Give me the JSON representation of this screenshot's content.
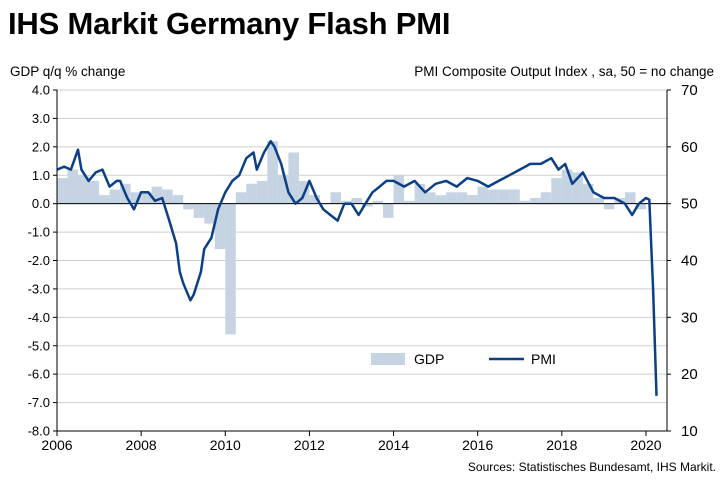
{
  "title": "IHS Markit Germany Flash PMI",
  "chart_data": {
    "type": "bar+line",
    "left_axis_label": "GDP q/q % change",
    "right_axis_label": "PMI Composite Output Index , sa, 50 = no change",
    "left_ylim": [
      -8.0,
      4.0
    ],
    "left_ticks": [
      "4.0",
      "3.0",
      "2.0",
      "1.0",
      "0.0",
      "-1.0",
      "-2.0",
      "-3.0",
      "-4.0",
      "-5.0",
      "-6.0",
      "-7.0",
      "-8.0"
    ],
    "right_ylim": [
      10,
      70
    ],
    "right_ticks": [
      "70",
      "60",
      "50",
      "40",
      "30",
      "20",
      "10"
    ],
    "x_range": [
      2006,
      2020.5
    ],
    "x_ticks": [
      "2006",
      "2008",
      "2010",
      "2012",
      "2014",
      "2016",
      "2018",
      "2020"
    ],
    "legend": {
      "gdp": "GDP",
      "pmi": "PMI",
      "position": "bottom-right"
    },
    "source": "Sources: Statistisches Bundesamt, IHS Markit.",
    "colors": {
      "gdp": "#c5d3e2",
      "pmi": "#0b3f86"
    },
    "gdp": {
      "name": "GDP",
      "x": [
        2006.0,
        2006.25,
        2006.5,
        2006.75,
        2007.0,
        2007.25,
        2007.5,
        2007.75,
        2008.0,
        2008.25,
        2008.5,
        2008.75,
        2009.0,
        2009.25,
        2009.5,
        2009.75,
        2010.0,
        2010.25,
        2010.5,
        2010.75,
        2011.0,
        2011.25,
        2011.5,
        2011.75,
        2012.0,
        2012.25,
        2012.5,
        2012.75,
        2013.0,
        2013.25,
        2013.5,
        2013.75,
        2014.0,
        2014.25,
        2014.5,
        2014.75,
        2015.0,
        2015.25,
        2015.5,
        2015.75,
        2016.0,
        2016.25,
        2016.5,
        2016.75,
        2017.0,
        2017.25,
        2017.5,
        2017.75,
        2018.0,
        2018.25,
        2018.5,
        2018.75,
        2019.0,
        2019.25,
        2019.5,
        2019.75
      ],
      "values": [
        0.9,
        1.2,
        1.0,
        0.8,
        0.3,
        0.5,
        0.7,
        0.4,
        0.4,
        0.6,
        0.5,
        0.3,
        -0.2,
        -0.5,
        -0.7,
        -1.6,
        -4.6,
        0.4,
        0.7,
        0.8,
        2.2,
        1.0,
        1.8,
        0.8,
        0.3,
        0.0,
        0.4,
        0.1,
        0.2,
        -0.1,
        0.1,
        -0.5,
        1.0,
        0.1,
        0.7,
        0.4,
        0.3,
        0.4,
        0.4,
        0.3,
        0.6,
        0.5,
        0.5,
        0.5,
        0.1,
        0.2,
        0.4,
        0.9,
        1.2,
        1.1,
        0.7,
        0.2,
        -0.2,
        0.2,
        0.4,
        -0.2
      ]
    },
    "pmi": {
      "name": "PMI",
      "x": [
        2006.0,
        2006.17,
        2006.33,
        2006.5,
        2006.58,
        2006.75,
        2006.92,
        2007.08,
        2007.25,
        2007.42,
        2007.5,
        2007.67,
        2007.83,
        2008.0,
        2008.17,
        2008.33,
        2008.5,
        2008.67,
        2008.83,
        2008.92,
        2009.0,
        2009.17,
        2009.25,
        2009.42,
        2009.5,
        2009.67,
        2009.83,
        2010.0,
        2010.17,
        2010.33,
        2010.5,
        2010.67,
        2010.75,
        2010.92,
        2011.08,
        2011.17,
        2011.33,
        2011.5,
        2011.67,
        2011.83,
        2012.0,
        2012.17,
        2012.33,
        2012.5,
        2012.67,
        2012.83,
        2013.0,
        2013.17,
        2013.33,
        2013.5,
        2013.67,
        2013.83,
        2014.0,
        2014.25,
        2014.5,
        2014.75,
        2015.0,
        2015.25,
        2015.5,
        2015.75,
        2016.0,
        2016.25,
        2016.5,
        2016.75,
        2017.0,
        2017.25,
        2017.5,
        2017.75,
        2017.92,
        2018.08,
        2018.25,
        2018.5,
        2018.75,
        2019.0,
        2019.25,
        2019.5,
        2019.67,
        2019.83,
        2020.0,
        2020.08,
        2020.17,
        2020.25
      ],
      "values": [
        56,
        56.5,
        56,
        59.5,
        56,
        54,
        55.5,
        56,
        53,
        54,
        54,
        51,
        49,
        52,
        52,
        50.5,
        51,
        47,
        43,
        38,
        36,
        33,
        34,
        38,
        42,
        44,
        49,
        52,
        54,
        55,
        58,
        59,
        56,
        59,
        61,
        60,
        57,
        52,
        50,
        51,
        54,
        51,
        49,
        48,
        47,
        50,
        50,
        48,
        50,
        52,
        53,
        54,
        54,
        53,
        54,
        52,
        53.5,
        54,
        53,
        54.5,
        54,
        53,
        54,
        55,
        56,
        57,
        57,
        58,
        56,
        57,
        53.5,
        55.5,
        52,
        51,
        51,
        50,
        48,
        50,
        51,
        50.7,
        35,
        16.2
      ]
    }
  }
}
